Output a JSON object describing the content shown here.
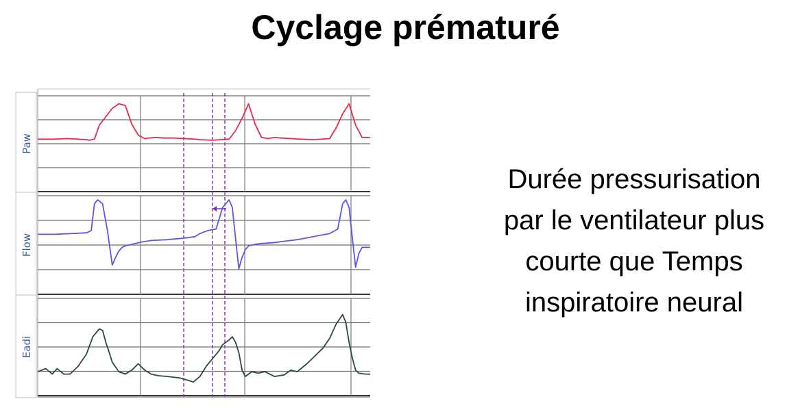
{
  "title": "Cyclage prématuré",
  "description_lines": [
    "Durée pressurisation",
    "par le ventilateur plus",
    "courte que Temps",
    "inspiratoire neural"
  ],
  "colors": {
    "paw": "#e8294e",
    "flow": "#5a55e6",
    "eadi": "#2b4a36",
    "marker": "#7b2fb5",
    "label": "#3b5f9c"
  },
  "chart_data": [
    {
      "type": "line",
      "series": [
        {
          "name": "Paw",
          "x": [
            0,
            10,
            18,
            25,
            30,
            32,
            35,
            38,
            42,
            46,
            50,
            54,
            58,
            62,
            66,
            72,
            78,
            84,
            90,
            97,
            100,
            108,
            118,
            122,
            126,
            130,
            134,
            138,
            142,
            146,
            150,
            156,
            162,
            170,
            180,
            184,
            188,
            192,
            196,
            200,
            205
          ],
          "values": [
            0.35,
            0.35,
            0.36,
            0.35,
            0.34,
            0.33,
            0.35,
            0.6,
            0.75,
            0.9,
            0.98,
            0.95,
            0.62,
            0.42,
            0.36,
            0.38,
            0.37,
            0.37,
            0.36,
            0.35,
            0.34,
            0.33,
            0.35,
            0.5,
            0.72,
            0.98,
            0.62,
            0.38,
            0.36,
            0.38,
            0.37,
            0.36,
            0.35,
            0.34,
            0.36,
            0.55,
            0.8,
            0.98,
            0.6,
            0.38,
            0.38
          ]
        }
      ],
      "ylim": [
        0,
        1
      ]
    },
    {
      "type": "line",
      "series": [
        {
          "name": "Flow",
          "x": [
            0,
            10,
            20,
            30,
            33,
            35,
            37,
            40,
            43,
            46,
            48,
            50,
            52,
            54,
            58,
            64,
            70,
            80,
            90,
            97,
            100,
            105,
            110,
            114,
            118,
            120,
            122,
            124,
            126,
            128,
            130,
            134,
            138,
            145,
            152,
            160,
            170,
            180,
            185,
            188,
            190,
            192,
            194,
            196,
            198,
            200,
            205
          ],
          "values": [
            0.55,
            0.55,
            0.56,
            0.57,
            0.6,
            0.95,
            1.0,
            0.95,
            0.6,
            0.15,
            0.25,
            0.33,
            0.38,
            0.4,
            0.42,
            0.45,
            0.47,
            0.48,
            0.5,
            0.52,
            0.56,
            0.6,
            0.62,
            0.9,
            1.0,
            0.9,
            0.5,
            0.1,
            0.25,
            0.35,
            0.4,
            0.42,
            0.43,
            0.44,
            0.46,
            0.48,
            0.52,
            0.56,
            0.62,
            0.95,
            1.0,
            0.9,
            0.5,
            0.12,
            0.3,
            0.38,
            0.38
          ]
        }
      ],
      "ylim": [
        0,
        1
      ]
    },
    {
      "type": "line",
      "series": [
        {
          "name": "Eadi",
          "x": [
            0,
            5,
            9,
            12,
            16,
            20,
            25,
            30,
            34,
            38,
            40,
            42,
            46,
            50,
            54,
            58,
            62,
            66,
            70,
            74,
            80,
            88,
            96,
            100,
            104,
            108,
            112,
            114,
            116,
            118,
            120,
            122,
            124,
            126,
            128,
            132,
            136,
            140,
            146,
            152,
            156,
            160,
            166,
            172,
            176,
            180,
            184,
            188,
            190,
            192,
            194,
            196,
            198,
            202,
            205
          ],
          "values": [
            0.18,
            0.22,
            0.15,
            0.22,
            0.15,
            0.15,
            0.25,
            0.4,
            0.62,
            0.72,
            0.7,
            0.55,
            0.3,
            0.18,
            0.15,
            0.2,
            0.28,
            0.2,
            0.15,
            0.13,
            0.12,
            0.1,
            0.05,
            0.12,
            0.25,
            0.35,
            0.45,
            0.52,
            0.55,
            0.58,
            0.62,
            0.55,
            0.42,
            0.2,
            0.12,
            0.18,
            0.16,
            0.18,
            0.12,
            0.14,
            0.2,
            0.18,
            0.28,
            0.4,
            0.48,
            0.6,
            0.78,
            0.9,
            0.8,
            0.55,
            0.35,
            0.2,
            0.16,
            0.15,
            0.15
          ]
        }
      ],
      "ylim": [
        0,
        1
      ]
    }
  ]
}
